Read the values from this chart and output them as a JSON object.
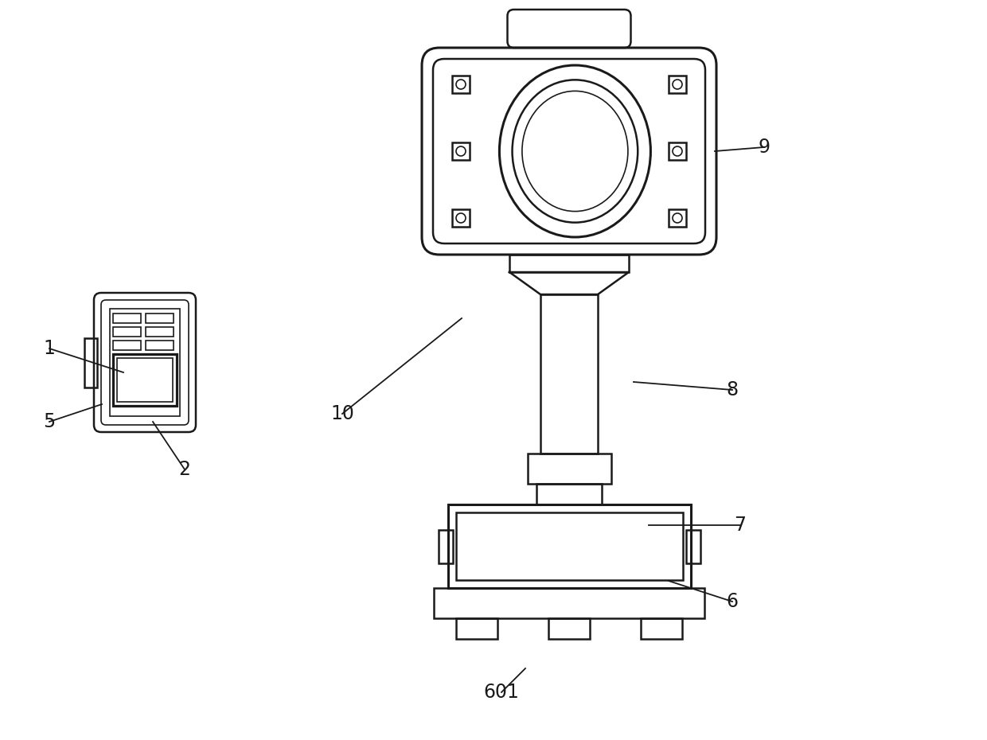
{
  "bg_color": "#ffffff",
  "line_color": "#1a1a1a",
  "lw": 1.8,
  "lw_thick": 2.2,
  "lw_thin": 1.2,
  "label_fontsize": 17,
  "ann_lw": 1.3
}
